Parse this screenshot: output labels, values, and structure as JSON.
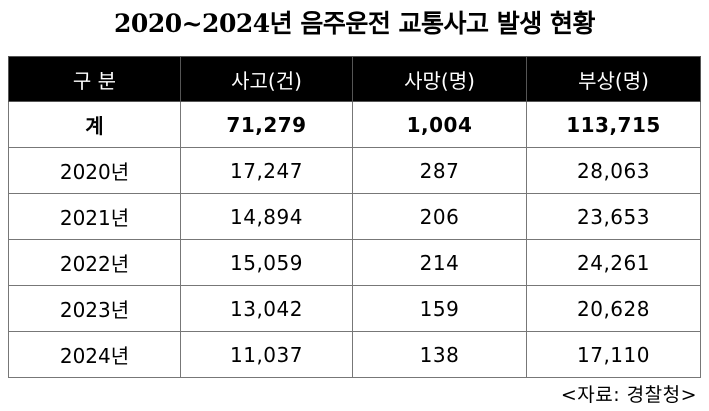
{
  "title": "2020~2024년 음주운전 교통사고 발생 현황",
  "table": {
    "headers": [
      "구 분",
      "사고(건)",
      "사망(명)",
      "부상(명)"
    ],
    "total": {
      "label": "계",
      "accidents": "71,279",
      "deaths": "1,004",
      "injuries": "113,715"
    },
    "rows": [
      {
        "year": "2020년",
        "accidents": "17,247",
        "deaths": "287",
        "injuries": "28,063"
      },
      {
        "year": "2021년",
        "accidents": "14,894",
        "deaths": "206",
        "injuries": "23,653"
      },
      {
        "year": "2022년",
        "accidents": "15,059",
        "deaths": "214",
        "injuries": "24,261"
      },
      {
        "year": "2023년",
        "accidents": "13,042",
        "deaths": "159",
        "injuries": "20,628"
      },
      {
        "year": "2024년",
        "accidents": "11,037",
        "deaths": "138",
        "injuries": "17,110"
      }
    ]
  },
  "source": "<자료: 경찰청>"
}
